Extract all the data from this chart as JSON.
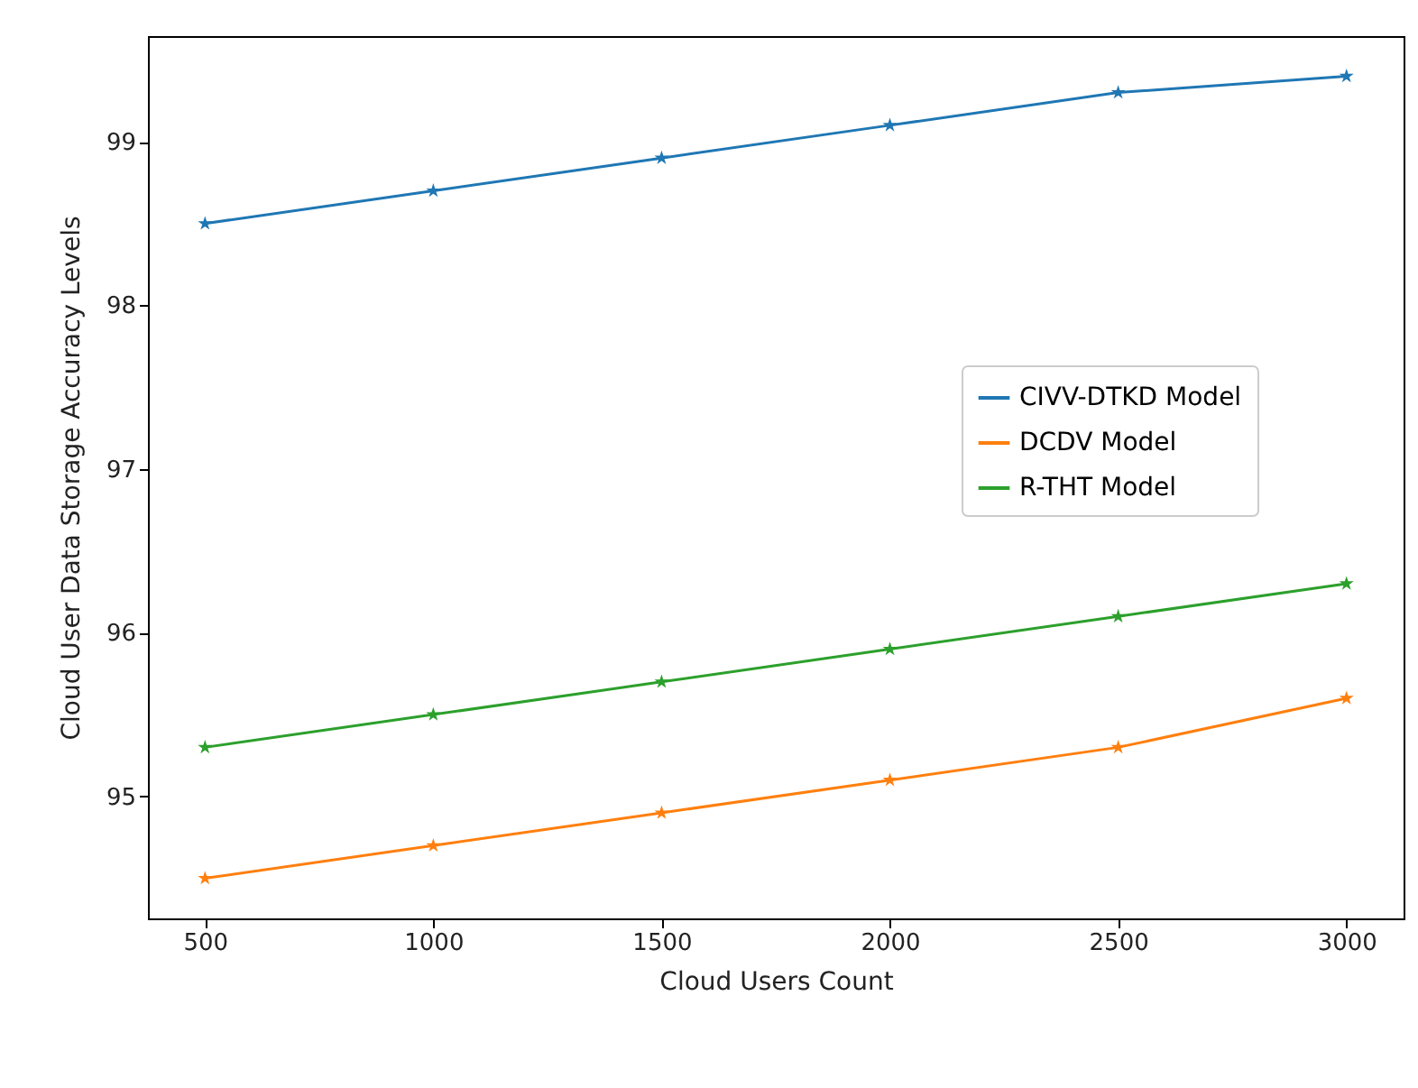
{
  "chart_data": {
    "type": "line",
    "xlabel": "Cloud Users Count",
    "ylabel": "Cloud User Data Storage Accuracy Levels",
    "x": [
      500,
      1000,
      1500,
      2000,
      2500,
      3000
    ],
    "series": [
      {
        "name": "CIVV-DTKD Model",
        "color": "#1f77b4",
        "values": [
          98.5,
          98.7,
          98.9,
          99.1,
          99.3,
          99.4
        ]
      },
      {
        "name": "DCDV Model",
        "color": "#ff7f0e",
        "values": [
          94.5,
          94.7,
          94.9,
          95.1,
          95.3,
          95.6
        ]
      },
      {
        "name": "R-THT Model",
        "color": "#2ca02c",
        "values": [
          95.3,
          95.5,
          95.7,
          95.9,
          96.1,
          96.3
        ]
      }
    ],
    "xlim": [
      375,
      3125
    ],
    "xticks": [
      500,
      1000,
      1500,
      2000,
      2500,
      3000
    ],
    "ylim": [
      94.255,
      99.645
    ],
    "yticks": [
      95,
      96,
      97,
      98,
      99
    ],
    "legend": "right",
    "marker": "star",
    "line_style": "solid"
  }
}
